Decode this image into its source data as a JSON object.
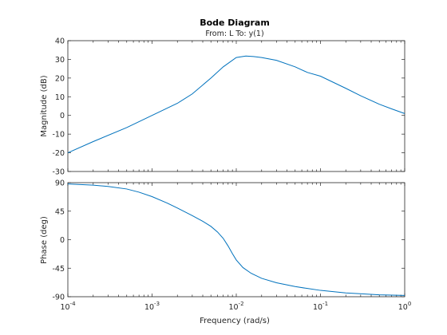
{
  "chart_data": {
    "type": "line",
    "title": "Bode Diagram",
    "subtitle": "From: L  To: y(1)",
    "xlabel": "Frequency  (rad/s)",
    "x_scale": "log",
    "xlim": [
      0.0001,
      1
    ],
    "x_tick_exponents": [
      "-4",
      "-3",
      "-2",
      "-1",
      "0"
    ],
    "grid": false,
    "panels": [
      {
        "ylabel": "Magnitude (dB)",
        "ylim": [
          -30,
          40
        ],
        "yticks": [
          40,
          30,
          20,
          10,
          0,
          -10,
          -20,
          -30
        ],
        "series": [
          {
            "color": "#0072bd",
            "x": [
              0.0001,
              0.0002,
              0.0005,
              0.001,
              0.002,
              0.003,
              0.005,
              0.007,
              0.01,
              0.013,
              0.016,
              0.02,
              0.03,
              0.05,
              0.07,
              0.1,
              0.2,
              0.3,
              0.5,
              0.7,
              1
            ],
            "y": [
              -20,
              -14,
              -6.5,
              0,
              6.5,
              11.5,
              20,
              26,
              31,
              31.8,
              31.5,
              31,
              29.5,
              26,
              23,
              21,
              14.5,
              10.5,
              6,
              3.5,
              1
            ]
          }
        ]
      },
      {
        "ylabel": "Phase (deg)",
        "ylim": [
          -90,
          90
        ],
        "yticks": [
          90,
          45,
          0,
          -45,
          -90
        ],
        "series": [
          {
            "color": "#0072bd",
            "x": [
              0.0001,
              0.0002,
              0.0003,
              0.0005,
              0.0007,
              0.001,
              0.0015,
              0.002,
              0.003,
              0.004,
              0.005,
              0.006,
              0.007,
              0.008,
              0.009,
              0.01,
              0.012,
              0.015,
              0.02,
              0.03,
              0.05,
              0.07,
              0.1,
              0.2,
              0.5,
              1
            ],
            "y": [
              88,
              86,
              84,
              80,
              75,
              68,
              58,
              50,
              38,
              29,
              21,
              12,
              2,
              -10,
              -22,
              -32,
              -44,
              -53,
              -61,
              -68,
              -74,
              -77,
              -80,
              -84,
              -87,
              -88
            ]
          }
        ]
      }
    ]
  }
}
